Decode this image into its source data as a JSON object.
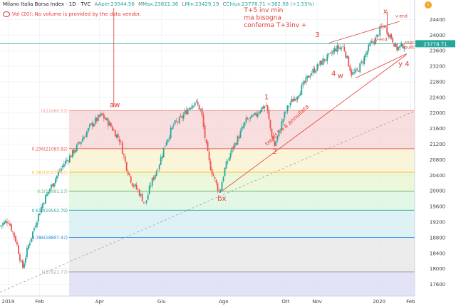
{
  "header": {
    "title": "Milano Italia Borsa Index · 1D · TVC",
    "open_label": "A",
    "open": "Aper.23544.56",
    "high_label": "M",
    "high": "Max.23821.36",
    "low_label": "L",
    "low": "Min.23429.19",
    "close_label": "C",
    "close": "Chius.23778.71",
    "change": "+362.58 (+1.55%)",
    "volume_note": "Vol (20): No volume is provided by the data vendor.",
    "info_badge": "!"
  },
  "colors": {
    "up": "#26a69a",
    "down": "#ef5350",
    "annotation": "#e53935",
    "price_line": "#26a69a",
    "price_label_bg": "#26a69a"
  },
  "chart_data": {
    "type": "candlestick",
    "title": "Milano Italia Borsa Index",
    "y_axis": {
      "min": 17300,
      "max": 24900,
      "ticks": [
        17600,
        18000,
        18400,
        18800,
        19200,
        19600,
        20000,
        20400,
        20800,
        21200,
        21600,
        22000,
        22400,
        22800,
        23200,
        23600,
        24000,
        24400
      ]
    },
    "x_axis": {
      "labels": [
        "2019",
        "Feb",
        "Apr",
        "Giu",
        "Ago",
        "Ott",
        "Nov",
        "2020",
        "Feb"
      ],
      "label_days": [
        0,
        31,
        90,
        151,
        212,
        273,
        304,
        365,
        396
      ],
      "range_days": [
        -8,
        400
      ]
    },
    "current_price": {
      "value": 23778.71,
      "label": "23778.71"
    },
    "fibonacci": [
      {
        "ratio": "0",
        "value": 22060.57,
        "label": "0(22060.57)"
      },
      {
        "ratio": "0.236",
        "value": 21083.82,
        "label": "0.236(21083.82)"
      },
      {
        "ratio": "0.382",
        "value": 20479.55,
        "label": "0.382(20479.55)"
      },
      {
        "ratio": "0.5",
        "value": 19991.17,
        "label": "0.5(19991.17)"
      },
      {
        "ratio": "0.618",
        "value": 19502.79,
        "label": "0.618(19502.79)"
      },
      {
        "ratio": "0.786",
        "value": 18807.47,
        "label": "0.786(18807.47)"
      },
      {
        "ratio": "1",
        "value": 17921.77,
        "label": "1(17921.77)"
      }
    ],
    "fib_start_day": 60,
    "price_path": [
      [
        -8,
        19100
      ],
      [
        0,
        19250
      ],
      [
        8,
        18700
      ],
      [
        14,
        18000
      ],
      [
        20,
        18600
      ],
      [
        28,
        19250
      ],
      [
        35,
        19750
      ],
      [
        45,
        20250
      ],
      [
        55,
        20700
      ],
      [
        63,
        20950
      ],
      [
        72,
        21300
      ],
      [
        82,
        21700
      ],
      [
        92,
        21950
      ],
      [
        100,
        21700
      ],
      [
        110,
        21300
      ],
      [
        116,
        20650
      ],
      [
        122,
        20200
      ],
      [
        128,
        20000
      ],
      [
        135,
        19650
      ],
      [
        140,
        20150
      ],
      [
        148,
        20650
      ],
      [
        155,
        21250
      ],
      [
        163,
        21700
      ],
      [
        170,
        21850
      ],
      [
        178,
        22150
      ],
      [
        184,
        22300
      ],
      [
        190,
        22050
      ],
      [
        194,
        21300
      ],
      [
        198,
        20700
      ],
      [
        203,
        20300
      ],
      [
        208,
        19950
      ],
      [
        213,
        20550
      ],
      [
        220,
        21050
      ],
      [
        227,
        21400
      ],
      [
        234,
        21800
      ],
      [
        242,
        21900
      ],
      [
        248,
        22100
      ],
      [
        254,
        22200
      ],
      [
        258,
        21600
      ],
      [
        262,
        21150
      ],
      [
        266,
        21450
      ],
      [
        271,
        21900
      ],
      [
        277,
        22250
      ],
      [
        283,
        22400
      ],
      [
        290,
        22700
      ],
      [
        297,
        23000
      ],
      [
        303,
        23150
      ],
      [
        310,
        23350
      ],
      [
        316,
        23450
      ],
      [
        322,
        23650
      ],
      [
        330,
        23700
      ],
      [
        334,
        23350
      ],
      [
        338,
        23000
      ],
      [
        343,
        23050
      ],
      [
        350,
        23400
      ],
      [
        356,
        23750
      ],
      [
        362,
        23900
      ],
      [
        366,
        24150
      ],
      [
        370,
        24250
      ],
      [
        374,
        24050
      ],
      [
        378,
        23900
      ],
      [
        382,
        23650
      ],
      [
        386,
        23700
      ],
      [
        390,
        23778.71
      ]
    ],
    "lines": [
      {
        "name": "trend-long",
        "from": [
          -8,
          17400
        ],
        "to": [
          400,
          22050
        ],
        "style": "dashed",
        "color": "#9e9e9e"
      },
      {
        "name": "trend-short",
        "from": [
          208,
          19950
        ],
        "to": [
          392,
          23500
        ],
        "style": "solid",
        "color": "#e53935"
      },
      {
        "name": "channel-upper",
        "from": [
          316,
          23800
        ],
        "to": [
          385,
          24350
        ],
        "style": "solid",
        "color": "#e53935"
      },
      {
        "name": "channel-lower",
        "from": [
          342,
          22900
        ],
        "to": [
          392,
          23520
        ],
        "style": "solid",
        "color": "#e53935"
      },
      {
        "name": "aw-marker",
        "from": [
          104,
          24700
        ],
        "to": [
          104,
          22150
        ],
        "style": "solid",
        "color": "#e53935"
      },
      {
        "name": "x-marker",
        "from": [
          373,
          24600
        ],
        "to": [
          373,
          24250
        ],
        "style": "solid",
        "color": "#e53935"
      }
    ],
    "annotations": [
      {
        "text": "T+5 inv min",
        "x": 232,
        "y": 24590,
        "size": 9
      },
      {
        "text": "ma bisogna",
        "x": 232,
        "y": 24400,
        "size": 9
      },
      {
        "text": "conferma T+3inv +",
        "x": 232,
        "y": 24210,
        "size": 9
      },
      {
        "text": "aw",
        "x": 100,
        "y": 22150,
        "size": 10
      },
      {
        "text": "bx",
        "x": 206,
        "y": 19750,
        "size": 10
      },
      {
        "text": "1",
        "x": 252,
        "y": 22350,
        "size": 10
      },
      {
        "text": "2",
        "x": 260,
        "y": 20950,
        "size": 10
      },
      {
        "text": "3",
        "x": 302,
        "y": 23950,
        "size": 10
      },
      {
        "text": "4",
        "x": 318,
        "y": 22950,
        "size": 10
      },
      {
        "text": "w",
        "x": 324,
        "y": 22900,
        "size": 10
      },
      {
        "text": "x",
        "x": 369,
        "y": 24550,
        "size": 10
      },
      {
        "text": "y 4",
        "x": 384,
        "y": 23200,
        "size": 10
      },
      {
        "text": "v-end",
        "x": 381,
        "y": 24450,
        "size": 6
      },
      {
        "text": "iv-end",
        "x": 360,
        "y": 23850,
        "size": 6
      },
      {
        "text": "sopra",
        "x": 390,
        "y": 23780,
        "size": 6
      },
      {
        "text": "pullback",
        "x": 390,
        "y": 23650,
        "size": 6
      },
      {
        "text": "trend T+4 annullata",
        "x": 255,
        "y": 21150,
        "size": 8,
        "angle": -43
      }
    ]
  }
}
